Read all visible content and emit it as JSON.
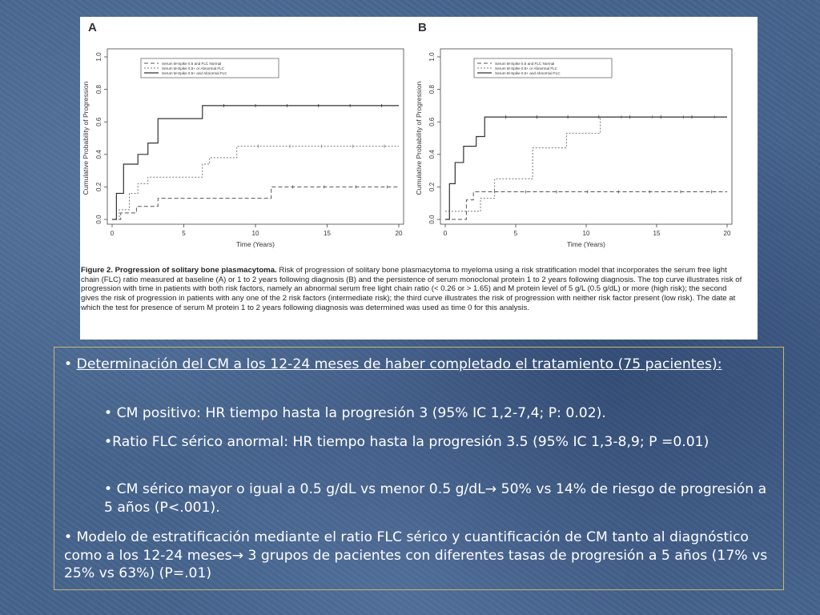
{
  "figure": {
    "caption_title": "Figure 2. Progression of solitary bone plasmacytoma.",
    "caption_body": "Risk of progression of solitary bone plasmacytoma to myeloma using a risk stratification model that incorporates the serum free light chain (FLC) ratio measured at baseline (A) or 1 to 2 years following diagnosis (B) and the persistence of serum monoclonal protein 1 to 2 years following diagnosis. The top curve illustrates risk of progression with time in patients with both risk factors, namely an abnormal serum free light chain ratio (< 0.26 or > 1.65) and M protein level of 5 g/L (0.5 g/dL) or more (high risk); the second gives the risk of progression in patients with any one of the 2 risk factors (intermediate risk); the third curve illustrates the risk of progression with neither risk factor present (low risk). The date at which the test for presence of serum M protein 1 to 2 years following diagnosis was determined was used as time 0 for this analysis."
  },
  "chart_data": [
    {
      "type": "line",
      "panel_label": "A",
      "xlabel": "Time (Years)",
      "ylabel": "Cumulative Probability of Progression",
      "xlim": [
        0,
        20
      ],
      "ylim": [
        0,
        1.0
      ],
      "xticks": [
        "0",
        "5",
        "10",
        "15",
        "20"
      ],
      "yticks": [
        "0.0",
        "0.2",
        "0.4",
        "0.6",
        "0.8",
        "1.0"
      ],
      "legend": [
        "Serum M-Spike 0.5 and FLC Normal",
        "Serum M-Spike 0.5+ or Abnormal FLC",
        "Serum M-Spike 0.5+ and Abnormal FLC"
      ],
      "legend_position": "top-right",
      "series": [
        {
          "name": "Serum M-Spike 0.5 and FLC Normal",
          "x": [
            0,
            0.6,
            1.7,
            3.2,
            11.1,
            20
          ],
          "y": [
            0,
            0.04,
            0.08,
            0.13,
            0.2,
            0.2
          ]
        },
        {
          "name": "Serum M-Spike 0.5+ or Abnormal FLC",
          "x": [
            0,
            0.5,
            1.2,
            1.8,
            2.5,
            6.3,
            6.8,
            8.7,
            20
          ],
          "y": [
            0,
            0.06,
            0.16,
            0.22,
            0.26,
            0.34,
            0.38,
            0.45,
            0.45
          ]
        },
        {
          "name": "Serum M-Spike 0.5+ and Abnormal FLC",
          "x": [
            0,
            0.3,
            0.8,
            1.8,
            2.5,
            3.2,
            6.3,
            20
          ],
          "y": [
            0,
            0.16,
            0.34,
            0.4,
            0.47,
            0.62,
            0.7,
            0.7
          ]
        }
      ]
    },
    {
      "type": "line",
      "panel_label": "B",
      "xlabel": "Time (Years)",
      "ylabel": "Cumulative Probability of Progression",
      "xlim": [
        0,
        20
      ],
      "ylim": [
        0,
        1.0
      ],
      "xticks": [
        "0",
        "5",
        "10",
        "15",
        "20"
      ],
      "yticks": [
        "0.0",
        "0.2",
        "0.4",
        "0.6",
        "0.8",
        "1.0"
      ],
      "legend": [
        "Serum M-Spike 0.5 and FLC Normal",
        "Serum M-Spike 0.5+ or Abnormal FLC",
        "Serum M-Spike 0.5+ and Abnormal FLC"
      ],
      "legend_position": "top-right",
      "series": [
        {
          "name": "Serum M-Spike 0.5 and FLC Normal",
          "x": [
            0,
            1.5,
            2.0,
            20
          ],
          "y": [
            0,
            0.12,
            0.17,
            0.17
          ]
        },
        {
          "name": "Serum M-Spike 0.5+ or Abnormal FLC",
          "x": [
            0,
            2.5,
            3.5,
            6.2,
            8.6,
            11.0,
            20
          ],
          "y": [
            0.05,
            0.13,
            0.25,
            0.44,
            0.53,
            0.63,
            0.63
          ]
        },
        {
          "name": "Serum M-Spike 0.5+ and Abnormal FLC",
          "x": [
            0,
            0.3,
            0.7,
            1.3,
            2.2,
            2.8,
            20
          ],
          "y": [
            0,
            0.22,
            0.35,
            0.45,
            0.51,
            0.63,
            0.63
          ]
        }
      ]
    }
  ],
  "bullets": {
    "b1_prefix": "• ",
    "b1": "Determinación del CM a los 12-24 meses de haber completado el tratamiento (75 pacientes):",
    "b1a": "• CM positivo: HR tiempo hasta la progresión 3 (95% IC 1,2-7,4; P: 0.02).",
    "b1b": "•Ratio FLC sérico anormal: HR tiempo hasta la progresión 3.5 (95% IC 1,3-8,9; P =0.01)",
    "b1c": "• CM sérico mayor o igual a 0.5 g/dL vs menor 0.5 g/dL→ 50%  vs 14% de riesgo de progresión a 5 años (P<.001).",
    "b2": "• Modelo de estratificación mediante el ratio FLC sérico y cuantificación de CM tanto al diagnóstico como a los 12-24 meses→ 3 grupos de pacientes con diferentes tasas de progresión a 5 años (17% vs 25% vs 63%) (P=.01)"
  }
}
